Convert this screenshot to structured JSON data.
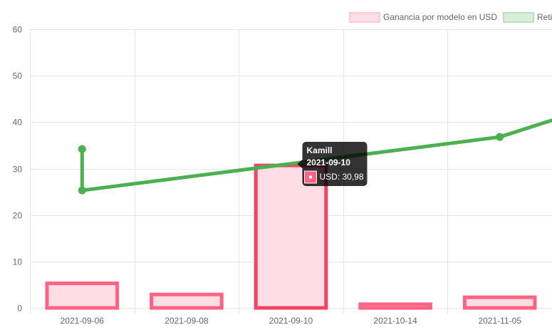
{
  "chart_data": {
    "type": "bar",
    "categories": [
      "2021-09-06",
      "2021-09-08",
      "2021-09-10",
      "2021-10-14",
      "2021-11-05"
    ],
    "ylim": [
      0,
      60
    ],
    "yticks": [
      0,
      10,
      20,
      30,
      40,
      50,
      60
    ],
    "grid": true,
    "legend_position": "top-right",
    "series": [
      {
        "name": "Ganancia por modelo en USD",
        "type": "bar",
        "color": "#ff6384",
        "fill": "#ffdde4",
        "values": [
          5.6,
          3.2,
          30.98,
          1.1,
          2.6
        ]
      },
      {
        "name": "Reti",
        "type": "line",
        "color": "#4caf50",
        "fill": "#d9efd9",
        "points": [
          {
            "x": "2021-09-06",
            "y": 34.2
          },
          {
            "x": "2021-09-06",
            "y": 25.3
          },
          {
            "x": "2021-11-05",
            "y": 36.8
          },
          {
            "x": "2021-11-05+",
            "y": 40.5
          }
        ]
      }
    ],
    "tooltip": {
      "title": "Kamill",
      "subtitle": "2021-09-10",
      "body": "USD: 30,98",
      "category": "2021-09-10",
      "value": 30.98
    }
  }
}
